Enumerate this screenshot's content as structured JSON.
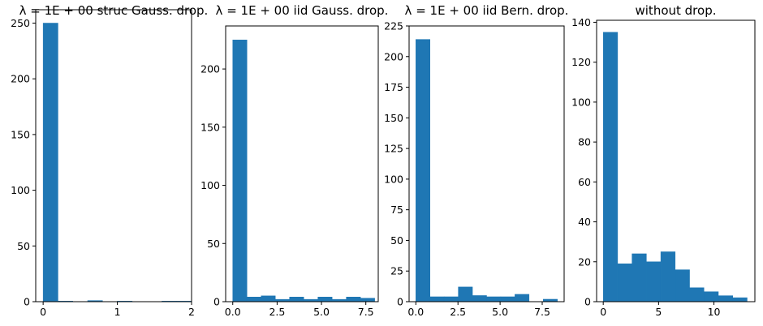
{
  "chart_data": [
    {
      "type": "bar",
      "title": "λ = 1E + 00 struc Gauss. drop.",
      "xlim": [
        -0.1,
        2.0
      ],
      "ylim": [
        0,
        262
      ],
      "xticks": [
        0,
        1,
        2
      ],
      "yticks": [
        0,
        50,
        100,
        150,
        200,
        250
      ],
      "bin_edges": [
        0,
        0.2,
        0.4,
        0.6,
        0.8,
        1.0,
        1.2,
        1.4,
        1.6,
        1.8,
        2.0
      ],
      "values": [
        250,
        0.5,
        0,
        1,
        0,
        0.5,
        0,
        0,
        0.5,
        0.5
      ],
      "color": "#1f77b4"
    },
    {
      "type": "bar",
      "title": "λ = 1E + 00 iid Gauss. drop.",
      "xlim": [
        -0.4,
        8.2
      ],
      "ylim": [
        0,
        237
      ],
      "xticks": [
        0.0,
        2.5,
        5.0,
        7.5
      ],
      "yticks": [
        0,
        50,
        100,
        150,
        200
      ],
      "bin_edges": [
        0,
        0.8,
        1.6,
        2.4,
        3.2,
        4.0,
        4.8,
        5.6,
        6.4,
        7.2,
        8.0
      ],
      "values": [
        225,
        4,
        5,
        2,
        4,
        2,
        4,
        2,
        4,
        3
      ],
      "color": "#1f77b4"
    },
    {
      "type": "bar",
      "title": "λ = 1E + 00  iid Bern. drop.",
      "xlim": [
        -0.4,
        8.8
      ],
      "ylim": [
        0,
        225
      ],
      "xticks": [
        0.0,
        2.5,
        5.0,
        7.5
      ],
      "yticks": [
        0,
        25,
        50,
        75,
        100,
        125,
        150,
        175,
        200,
        225
      ],
      "bin_edges": [
        0,
        0.84,
        1.68,
        2.52,
        3.36,
        4.2,
        5.04,
        5.88,
        6.72,
        7.56,
        8.4
      ],
      "values": [
        214,
        4,
        4,
        12,
        5,
        4,
        4,
        6,
        0,
        2
      ],
      "color": "#1f77b4"
    },
    {
      "type": "bar",
      "title": "without drop.",
      "xlim": [
        -0.6,
        13.7
      ],
      "ylim": [
        0,
        141
      ],
      "xticks": [
        0,
        5,
        10
      ],
      "yticks": [
        0,
        20,
        40,
        60,
        80,
        100,
        120,
        140
      ],
      "bin_edges": [
        0,
        1.3,
        2.6,
        3.9,
        5.2,
        6.5,
        7.8,
        9.1,
        10.4,
        11.7,
        13.0
      ],
      "values": [
        135,
        19,
        24,
        20,
        25,
        16,
        7,
        5,
        3,
        2
      ],
      "color": "#1f77b4"
    }
  ]
}
